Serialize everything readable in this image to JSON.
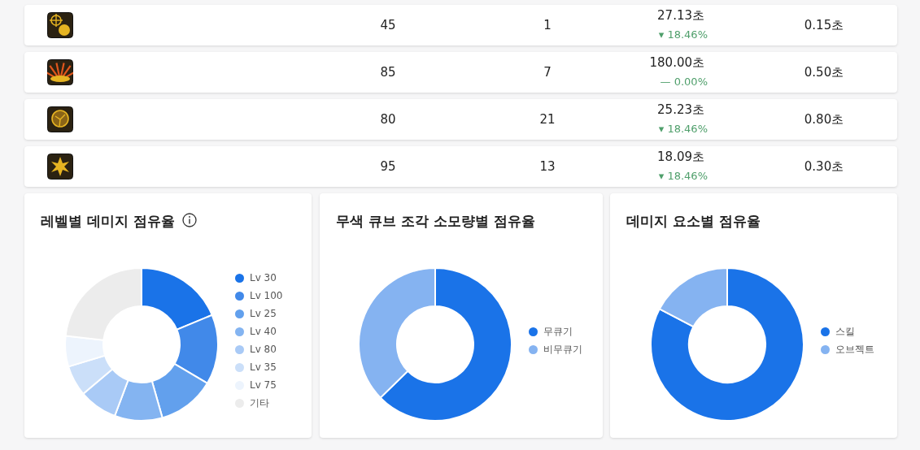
{
  "chart_data": [
    {
      "type": "other",
      "annotations": [
        "45",
        "1",
        "27.13초",
        "▾ 18.46%",
        "0.15초",
        "85",
        "7",
        "180.00초",
        "— 0.00%",
        "0.50초",
        "80",
        "21",
        "25.23초",
        "▾ 18.46%",
        "0.80초",
        "95",
        "13",
        "18.09초",
        "▾ 18.46%",
        "0.30초"
      ]
    },
    {
      "type": "donut",
      "title": "레벨별 데미지 점유율",
      "categories": [
        "Lv 30",
        "Lv 100",
        "Lv 25",
        "Lv 40",
        "Lv 80",
        "Lv 35",
        "Lv 75",
        "기타"
      ],
      "values": [
        18.7,
        14.8,
        12.1,
        10.1,
        8.1,
        6.5,
        6.5,
        23.2
      ],
      "colors": [
        "#1a73e8",
        "#4189e9",
        "#62a0ed",
        "#84b4f1",
        "#a9caf6",
        "#cbdff9",
        "#edf4fd",
        "#ececec"
      ],
      "legend": "right"
    },
    {
      "type": "donut",
      "title": "무색 큐브 조각 소모량별 점유율",
      "categories": [
        "무큐기",
        "비무큐기"
      ],
      "values": [
        62.7,
        37.3
      ],
      "colors": [
        "#1a73e8",
        "#85b3f1"
      ],
      "legend": "right"
    },
    {
      "type": "donut",
      "title": "데미지 요소별 점유율",
      "categories": [
        "스킬",
        "오브젝트"
      ],
      "values": [
        82.7,
        17.3
      ],
      "colors": [
        "#1a73e8",
        "#85b3f1"
      ],
      "legend": "right"
    }
  ]
}
